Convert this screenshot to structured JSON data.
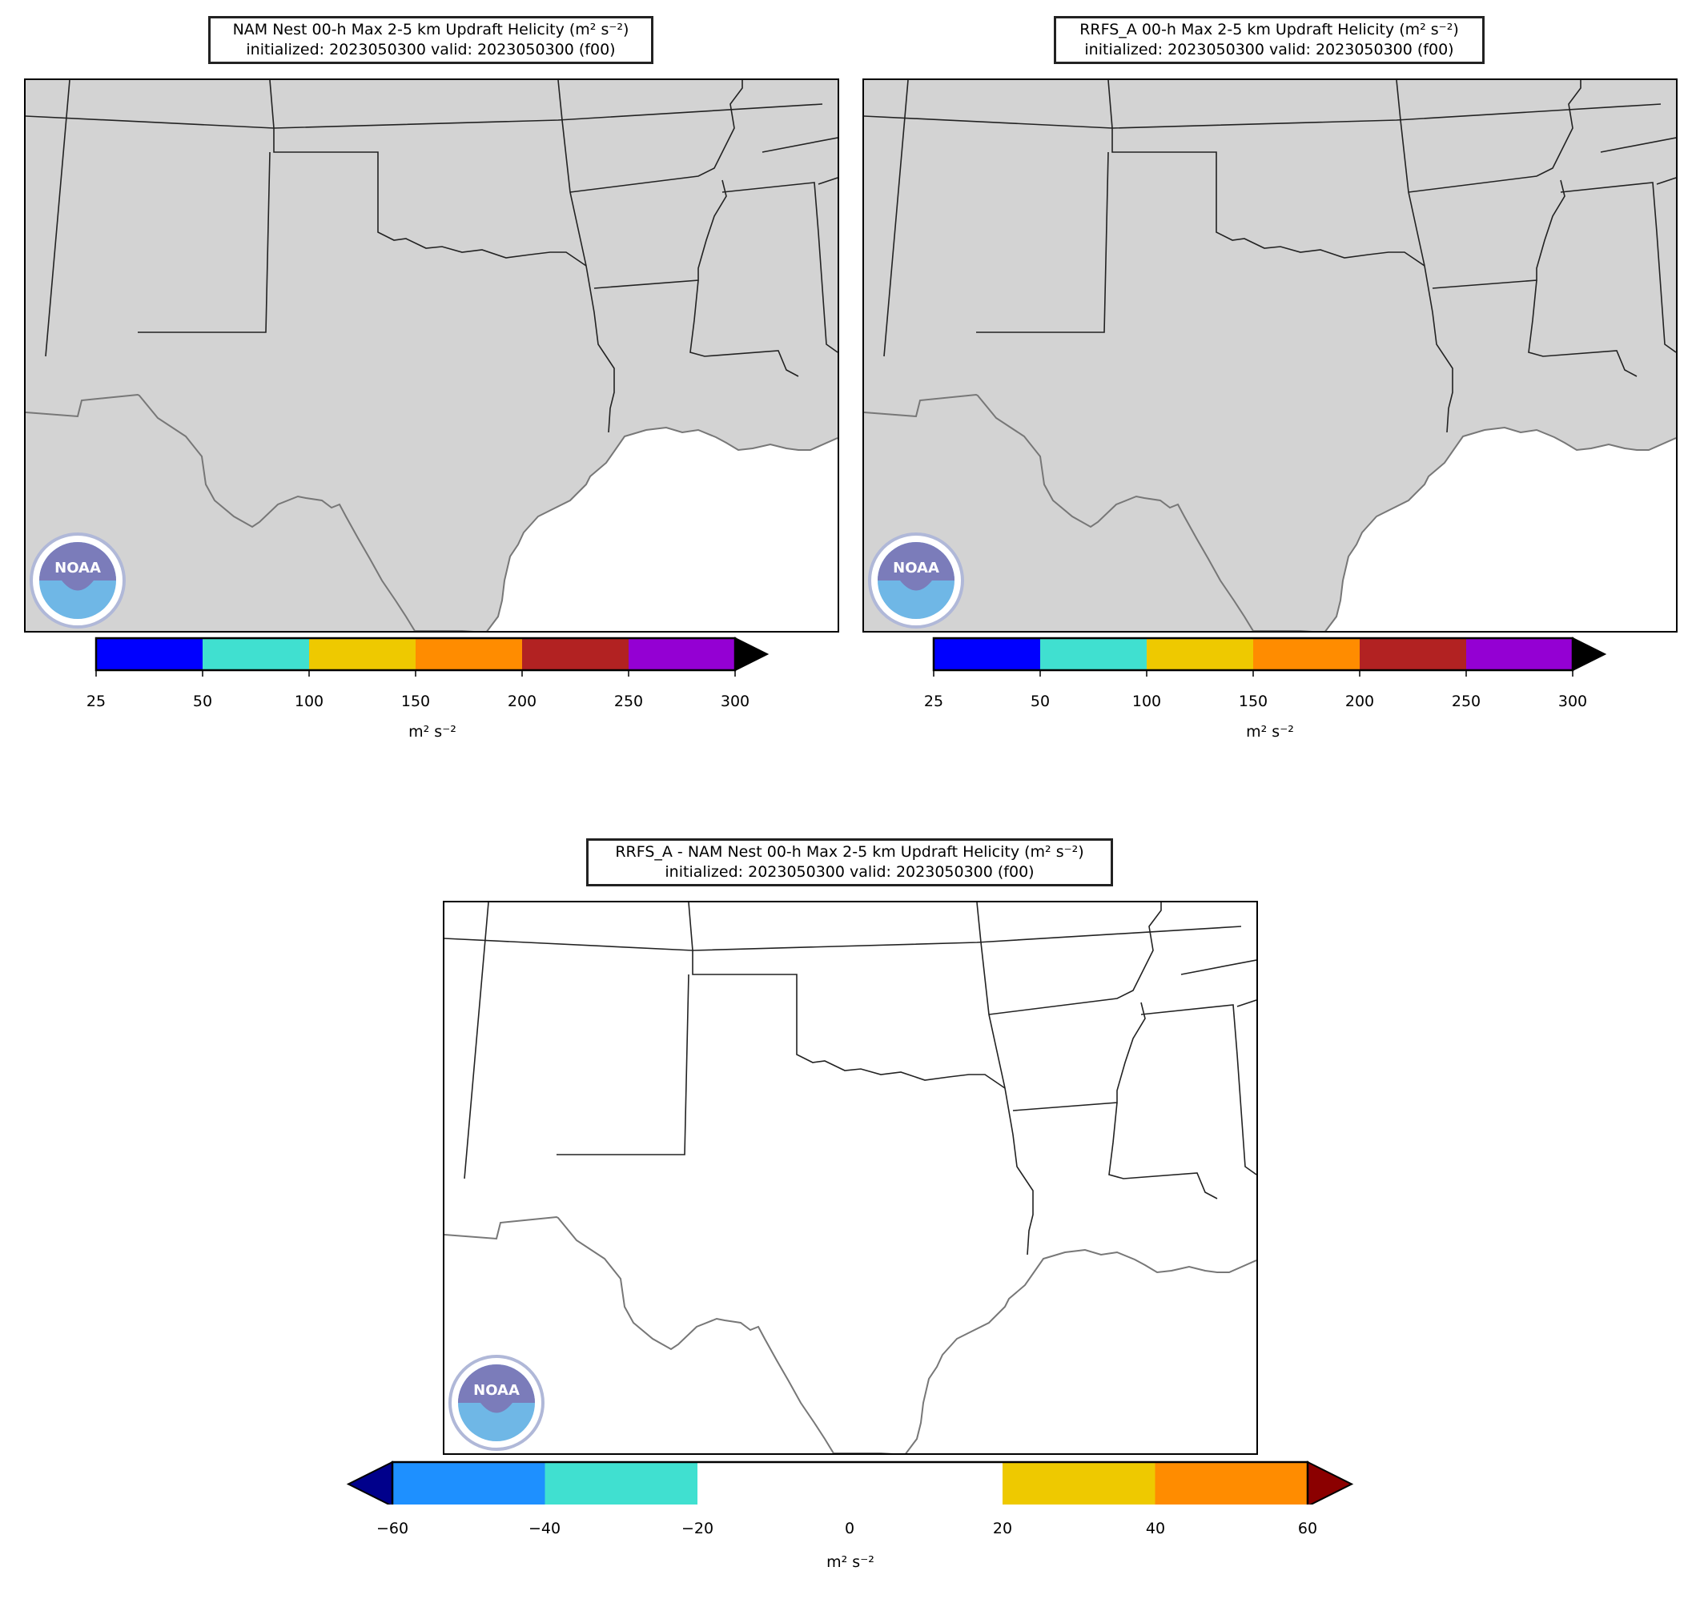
{
  "panels": [
    {
      "id": "nam",
      "title_line1": "NAM Nest 00-h Max 2-5 km Updraft Helicity (m² s⁻²)",
      "title_line2": "initialized: 2023050300 valid: 2023050300 (f00)",
      "land_color": "#d3d3d3",
      "logo": "noaa-logo"
    },
    {
      "id": "rrfs",
      "title_line1": "RRFS_A 00-h Max 2-5 km Updraft Helicity (m² s⁻²)",
      "title_line2": "initialized: 2023050300 valid: 2023050300 (f00)",
      "land_color": "#d3d3d3",
      "logo": "noaa-logo"
    },
    {
      "id": "diff",
      "title_line1": "RRFS_A - NAM Nest 00-h Max 2-5 km Updraft Helicity (m² s⁻²)",
      "title_line2": "initialized: 2023050300 valid: 2023050300 (f00)",
      "land_color": "#ffffff",
      "logo": "noaa-logo"
    }
  ],
  "colorbar_uh": {
    "ticks": [
      "25",
      "50",
      "100",
      "150",
      "200",
      "250",
      "300"
    ],
    "colors": [
      "#0000ff",
      "#40e0d0",
      "#eec900",
      "#ff8c00",
      "#b22222",
      "#9400d3"
    ],
    "extend_max_color": "#000000",
    "units": "m² s⁻²"
  },
  "colorbar_diff": {
    "ticks": [
      "−60",
      "−40",
      "−20",
      "0",
      "20",
      "40",
      "60"
    ],
    "colors": [
      "#1e90ff",
      "#40e0d0",
      "#ffffff",
      "#ffffff",
      "#eec900",
      "#ff8c00"
    ],
    "extend_min_color": "#00008b",
    "extend_max_color": "#8b0000",
    "units": "m² s⁻²"
  }
}
